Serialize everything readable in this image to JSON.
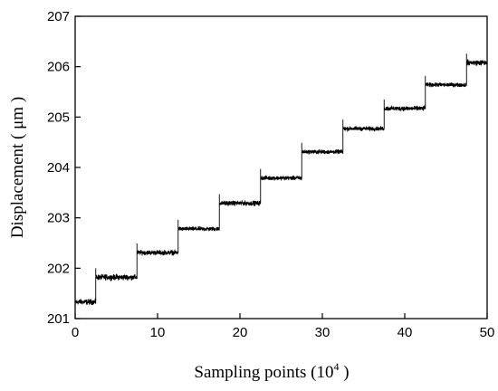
{
  "chart_data": {
    "type": "line",
    "title": "",
    "xlabel": "Sampling points (10",
    "xlabel_sup": "4",
    "xlabel_end": " )",
    "ylabel": "Displacement ( μm )",
    "xlim": [
      0,
      50
    ],
    "ylim": [
      201,
      207
    ],
    "xticks": [
      0,
      10,
      20,
      30,
      40,
      50
    ],
    "yticks": [
      201,
      202,
      203,
      204,
      205,
      206,
      207
    ],
    "grid": false,
    "legend": "none",
    "line_color": "#000000",
    "series": [
      {
        "steps": [
          {
            "x_start": 0.0,
            "x_end": 2.5,
            "y": 201.33,
            "noise": 0.08
          },
          {
            "x_start": 2.5,
            "x_end": 7.5,
            "y": 201.82,
            "noise": 0.08
          },
          {
            "x_start": 7.5,
            "x_end": 12.5,
            "y": 202.31,
            "noise": 0.07
          },
          {
            "x_start": 12.5,
            "x_end": 17.5,
            "y": 202.78,
            "noise": 0.06
          },
          {
            "x_start": 17.5,
            "x_end": 22.5,
            "y": 203.29,
            "noise": 0.07
          },
          {
            "x_start": 22.5,
            "x_end": 27.5,
            "y": 203.79,
            "noise": 0.06
          },
          {
            "x_start": 27.5,
            "x_end": 32.5,
            "y": 204.31,
            "noise": 0.06
          },
          {
            "x_start": 32.5,
            "x_end": 37.5,
            "y": 204.77,
            "noise": 0.06
          },
          {
            "x_start": 37.5,
            "x_end": 42.5,
            "y": 205.17,
            "noise": 0.07
          },
          {
            "x_start": 42.5,
            "x_end": 47.5,
            "y": 205.64,
            "noise": 0.06
          },
          {
            "x_start": 47.5,
            "x_end": 50.0,
            "y": 206.08,
            "noise": 0.08
          }
        ]
      }
    ]
  }
}
